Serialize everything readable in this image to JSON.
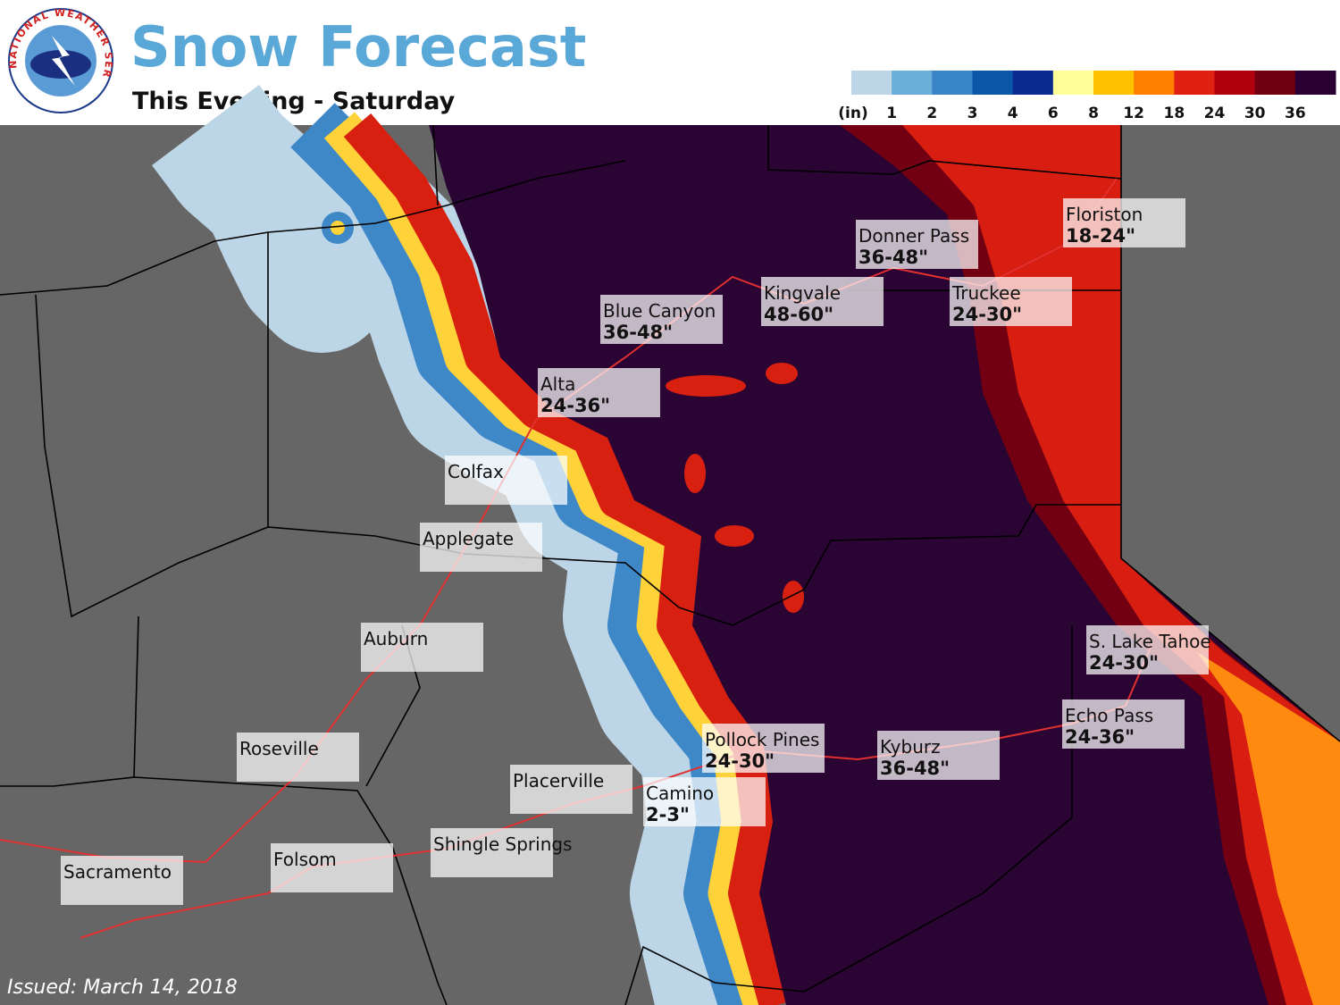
{
  "header": {
    "title": "Snow Forecast",
    "subtitle": "This Evening - Saturday"
  },
  "logo": {
    "text": "NATIONAL WEATHER SERVICE"
  },
  "legend": {
    "unit": "(in)",
    "ticks": [
      1,
      2,
      3,
      4,
      6,
      8,
      12,
      18,
      24,
      30,
      36
    ],
    "colors": [
      "#bcd6e8",
      "#6aaedc",
      "#3a85c6",
      "#0d57a8",
      "#0a2a8f",
      "#ffff99",
      "#ffc000",
      "#ff8000",
      "#e02010",
      "#b00010",
      "#700010",
      "#2a0033"
    ]
  },
  "places": [
    {
      "name": "Floriston",
      "amount": "18-24\""
    },
    {
      "name": "Donner Pass",
      "amount": "36-48\""
    },
    {
      "name": "Kingvale",
      "amount": "48-60\""
    },
    {
      "name": "Truckee",
      "amount": "24-30\""
    },
    {
      "name": "Blue Canyon",
      "amount": "36-48\""
    },
    {
      "name": "Alta",
      "amount": "24-36\""
    },
    {
      "name": "Colfax"
    },
    {
      "name": "Applegate"
    },
    {
      "name": "Auburn"
    },
    {
      "name": "Roseville"
    },
    {
      "name": "Placerville"
    },
    {
      "name": "Camino",
      "amount": "2-3\""
    },
    {
      "name": "Pollock Pines",
      "amount": "24-30\""
    },
    {
      "name": "Kyburz",
      "amount": "36-48\""
    },
    {
      "name": "Echo Pass",
      "amount": "24-36\""
    },
    {
      "name": "S. Lake Tahoe",
      "amount": "24-30\""
    },
    {
      "name": "Shingle Springs"
    },
    {
      "name": "Folsom"
    },
    {
      "name": "Sacramento"
    }
  ],
  "footer": {
    "issued": "Issued: March 14, 2018"
  }
}
